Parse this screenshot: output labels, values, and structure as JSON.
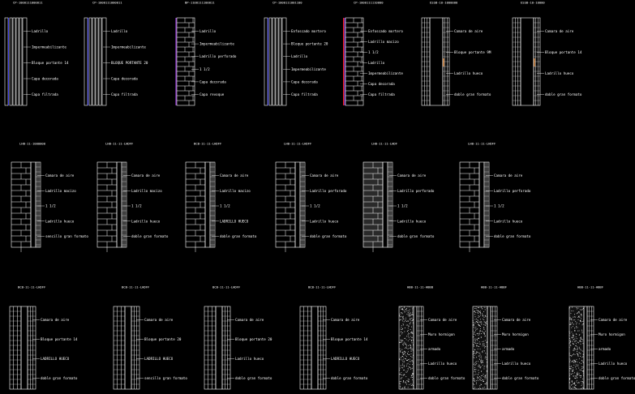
{
  "drawing": {
    "background": "#000000",
    "line_color": "#ffffff",
    "accents": {
      "blue": "#3a3aff",
      "red": "#ff2020",
      "purple": "#b040ff",
      "orange": "#ff8a20"
    }
  },
  "rows": [
    {
      "details": [
        {
          "title": "CP-1000111000011",
          "style": "panels",
          "labels": [
            "Ladrillo",
            "Impermeabilizante",
            "Bloque portante 14",
            "Capa decorada",
            "Capa filtrada"
          ]
        },
        {
          "title": "CP-1000111000011",
          "style": "panels",
          "labels": [
            "Ladrillo",
            "Impermeabilizante",
            "BLOQUE PORTANTE 20",
            "Capa decorada",
            "Capa filtrada"
          ]
        },
        {
          "title": "BP-1100111100011",
          "style": "brick",
          "labels": [
            "Ladrillo",
            "Impermeabilizante",
            "Ladrillo perforado",
            "1 1/2",
            "Capa decorada",
            "Capa revoque"
          ]
        },
        {
          "title": "CP-1000111001100",
          "style": "panels",
          "labels": [
            "Enfoscado mortero",
            "Bloque portante 20",
            "Ladrillo",
            "Impermeabilizante",
            "Capa decorada",
            "Capa filtrada"
          ]
        },
        {
          "title": "CP-1000111110000",
          "style": "brick-red",
          "labels": [
            "Enfoscado mortero",
            "Ladrillo macizo",
            "1 1/2",
            "Ladrillo",
            "Impermeabilizante",
            "Capa decorada",
            "Capa filtrada"
          ]
        },
        {
          "title": "ESSB-10-1000000",
          "style": "hollow",
          "labels": [
            "Camara de aire",
            "Bloque portante 9M",
            "Ladrillo hueco",
            "doble gran formato"
          ]
        },
        {
          "title": "ESSB-10-10000",
          "style": "hollow",
          "labels": [
            "Camara de aire",
            "Bloque portante 14",
            "Ladrillo hueco",
            "doble gran formato"
          ]
        }
      ]
    },
    {
      "details": [
        {
          "title": "LHB-11-1000000",
          "style": "brick-wide",
          "labels": [
            "Camara de aire",
            "Ladrillo macizo",
            "1 1/2",
            "Ladrillo hueco",
            "sencillo gran formato"
          ]
        },
        {
          "title": "LHB-11-11-LHDFF",
          "style": "brick-wide",
          "labels": [
            "Camara de aire",
            "Ladrillo macizo",
            "1 1/2",
            "Ladrillo hueco",
            "doble gran formato"
          ]
        },
        {
          "title": "BCB-11-11-LHDFF",
          "style": "brick-wide",
          "labels": [
            "Camara de aire",
            "Ladrillo macizo",
            "1 1/2",
            "LADRILLO HUECO",
            "doble gran formato"
          ]
        },
        {
          "title": "LHB-11-11-LHDFF",
          "style": "brick-wide",
          "labels": [
            "Camara de aire",
            "Ladrillo perforado",
            "1 1/2",
            "Ladrillo hueco",
            "doble gran formato"
          ]
        },
        {
          "title": "LHB-11-11-LHDF",
          "style": "brick-dark",
          "labels": [
            "Camara de aire",
            "Ladrillo perforado",
            "1 1/2",
            "Ladrillo hueco",
            "doble gran formato"
          ]
        },
        {
          "title": "LHB-11-11-LHDFF",
          "style": "brick-wide",
          "labels": [
            "Camara de aire",
            "Ladrillo perforado",
            "1 1/2",
            "Ladrillo hueco",
            "doble gran formato"
          ]
        }
      ]
    },
    {
      "details": [
        {
          "title": "BCB-11-11-LHDFF",
          "style": "hollow-tall",
          "labels": [
            "Camara de aire",
            "Bloque portante 14",
            "LADRILLO HUECO",
            "doble gran formato"
          ]
        },
        {
          "title": "BCB-11-11-LHDFF",
          "style": "hollow-tall",
          "labels": [
            "Camara de aire",
            "Bloque portante 20",
            "LADRILLO HUECO",
            "sencillo gran formato"
          ]
        },
        {
          "title": "BCB-11-11-LHDFF",
          "style": "hollow-tall",
          "labels": [
            "Camara de aire",
            "Bloque portante 20",
            "Ladrillo hueco",
            "doble gran formato"
          ]
        },
        {
          "title": "BCB-11-11-LHDFF",
          "style": "hollow-tall",
          "labels": [
            "Camara de aire",
            "Bloque portante 14",
            "LADRILLO HUECO",
            "doble gran formato"
          ]
        },
        {
          "title": "HBB-11-11-HBBB",
          "style": "concrete",
          "labels": [
            "Camara de aire",
            "Muro hormigon",
            "armado",
            "Ladrillo hueco",
            "doble gran formato"
          ]
        },
        {
          "title": "HBB-11-11-HBBF",
          "style": "concrete",
          "labels": [
            "Camara de aire",
            "Muro hormigon",
            "armado",
            "Ladrillo hueco",
            "doble gran formato"
          ]
        },
        {
          "title": "HBB-11-11-HBBF",
          "style": "concrete",
          "labels": [
            "Camara de aire",
            "Muro hormigon",
            "armado",
            "Ladrillo hueco",
            "doble gran formato"
          ]
        }
      ]
    }
  ]
}
